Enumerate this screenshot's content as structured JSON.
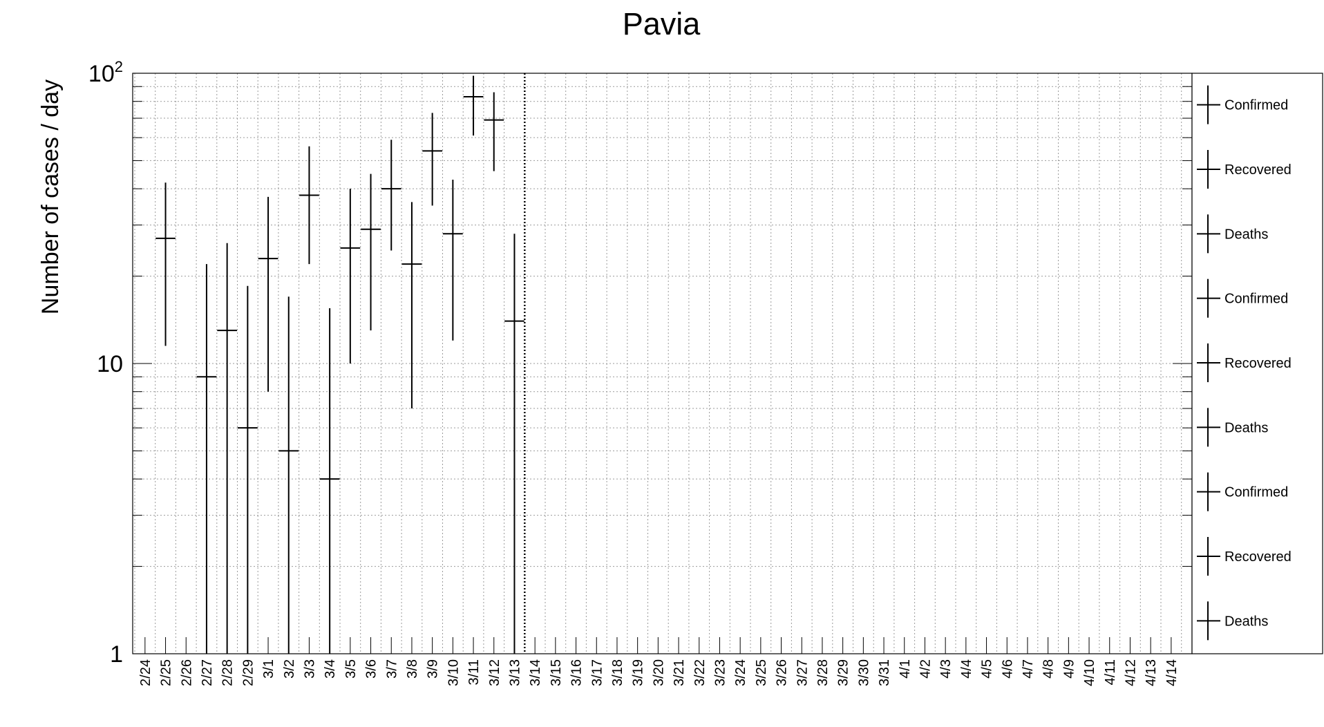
{
  "chart_data": {
    "type": "scatter",
    "title": "Pavia",
    "xlabel": "",
    "ylabel": "Number of cases / day",
    "yscale": "log",
    "ylim": [
      1,
      100
    ],
    "yticks": [
      {
        "value": 1,
        "label": "1"
      },
      {
        "value": 10,
        "label": "10"
      },
      {
        "value": 100,
        "label": "10",
        "exp": "2"
      }
    ],
    "grid": true,
    "categories": [
      "2/24",
      "2/25",
      "2/26",
      "2/27",
      "2/28",
      "2/29",
      "3/1",
      "3/2",
      "3/3",
      "3/4",
      "3/5",
      "3/6",
      "3/7",
      "3/8",
      "3/9",
      "3/10",
      "3/11",
      "3/12",
      "3/13",
      "3/14",
      "3/15",
      "3/16",
      "3/17",
      "3/18",
      "3/19",
      "3/20",
      "3/21",
      "3/22",
      "3/23",
      "3/24",
      "3/25",
      "3/26",
      "3/27",
      "3/28",
      "3/29",
      "3/30",
      "3/31",
      "4/1",
      "4/2",
      "4/3",
      "4/4",
      "4/5",
      "4/6",
      "4/7",
      "4/8",
      "4/9",
      "4/10",
      "4/11",
      "4/12",
      "4/13",
      "4/14"
    ],
    "vline_after": "3/13",
    "series": [
      {
        "name": "Confirmed",
        "points": [
          {
            "x": "2/25",
            "y": 27,
            "ylow": 11.5,
            "yhigh": 42
          },
          {
            "x": "2/27",
            "y": 9,
            "ylow": 1,
            "yhigh": 22
          },
          {
            "x": "2/28",
            "y": 13,
            "ylow": 1,
            "yhigh": 26
          },
          {
            "x": "2/29",
            "y": 6,
            "ylow": 1,
            "yhigh": 18.5
          },
          {
            "x": "3/1",
            "y": 23,
            "ylow": 8,
            "yhigh": 37.5
          },
          {
            "x": "3/2",
            "y": 5,
            "ylow": 1,
            "yhigh": 17
          },
          {
            "x": "3/3",
            "y": 38,
            "ylow": 22,
            "yhigh": 56
          },
          {
            "x": "3/4",
            "y": 4,
            "ylow": 1,
            "yhigh": 15.5
          },
          {
            "x": "3/5",
            "y": 25,
            "ylow": 10,
            "yhigh": 40
          },
          {
            "x": "3/6",
            "y": 29,
            "ylow": 13,
            "yhigh": 45
          },
          {
            "x": "3/7",
            "y": 40,
            "ylow": 24.5,
            "yhigh": 59
          },
          {
            "x": "3/8",
            "y": 22,
            "ylow": 7,
            "yhigh": 36
          },
          {
            "x": "3/9",
            "y": 54,
            "ylow": 35,
            "yhigh": 73
          },
          {
            "x": "3/10",
            "y": 28,
            "ylow": 12,
            "yhigh": 43
          },
          {
            "x": "3/11",
            "y": 83,
            "ylow": 61,
            "yhigh": 98
          },
          {
            "x": "3/12",
            "y": 69,
            "ylow": 46,
            "yhigh": 86
          },
          {
            "x": "3/13",
            "y": 14,
            "ylow": 1,
            "yhigh": 28
          }
        ]
      },
      {
        "name": "Recovered",
        "points": []
      },
      {
        "name": "Deaths",
        "points": []
      }
    ],
    "legend": {
      "position": "right",
      "entries": [
        "Confirmed",
        "Recovered",
        "Deaths",
        "Confirmed",
        "Recovered",
        "Deaths",
        "Confirmed",
        "Recovered",
        "Deaths"
      ]
    }
  }
}
